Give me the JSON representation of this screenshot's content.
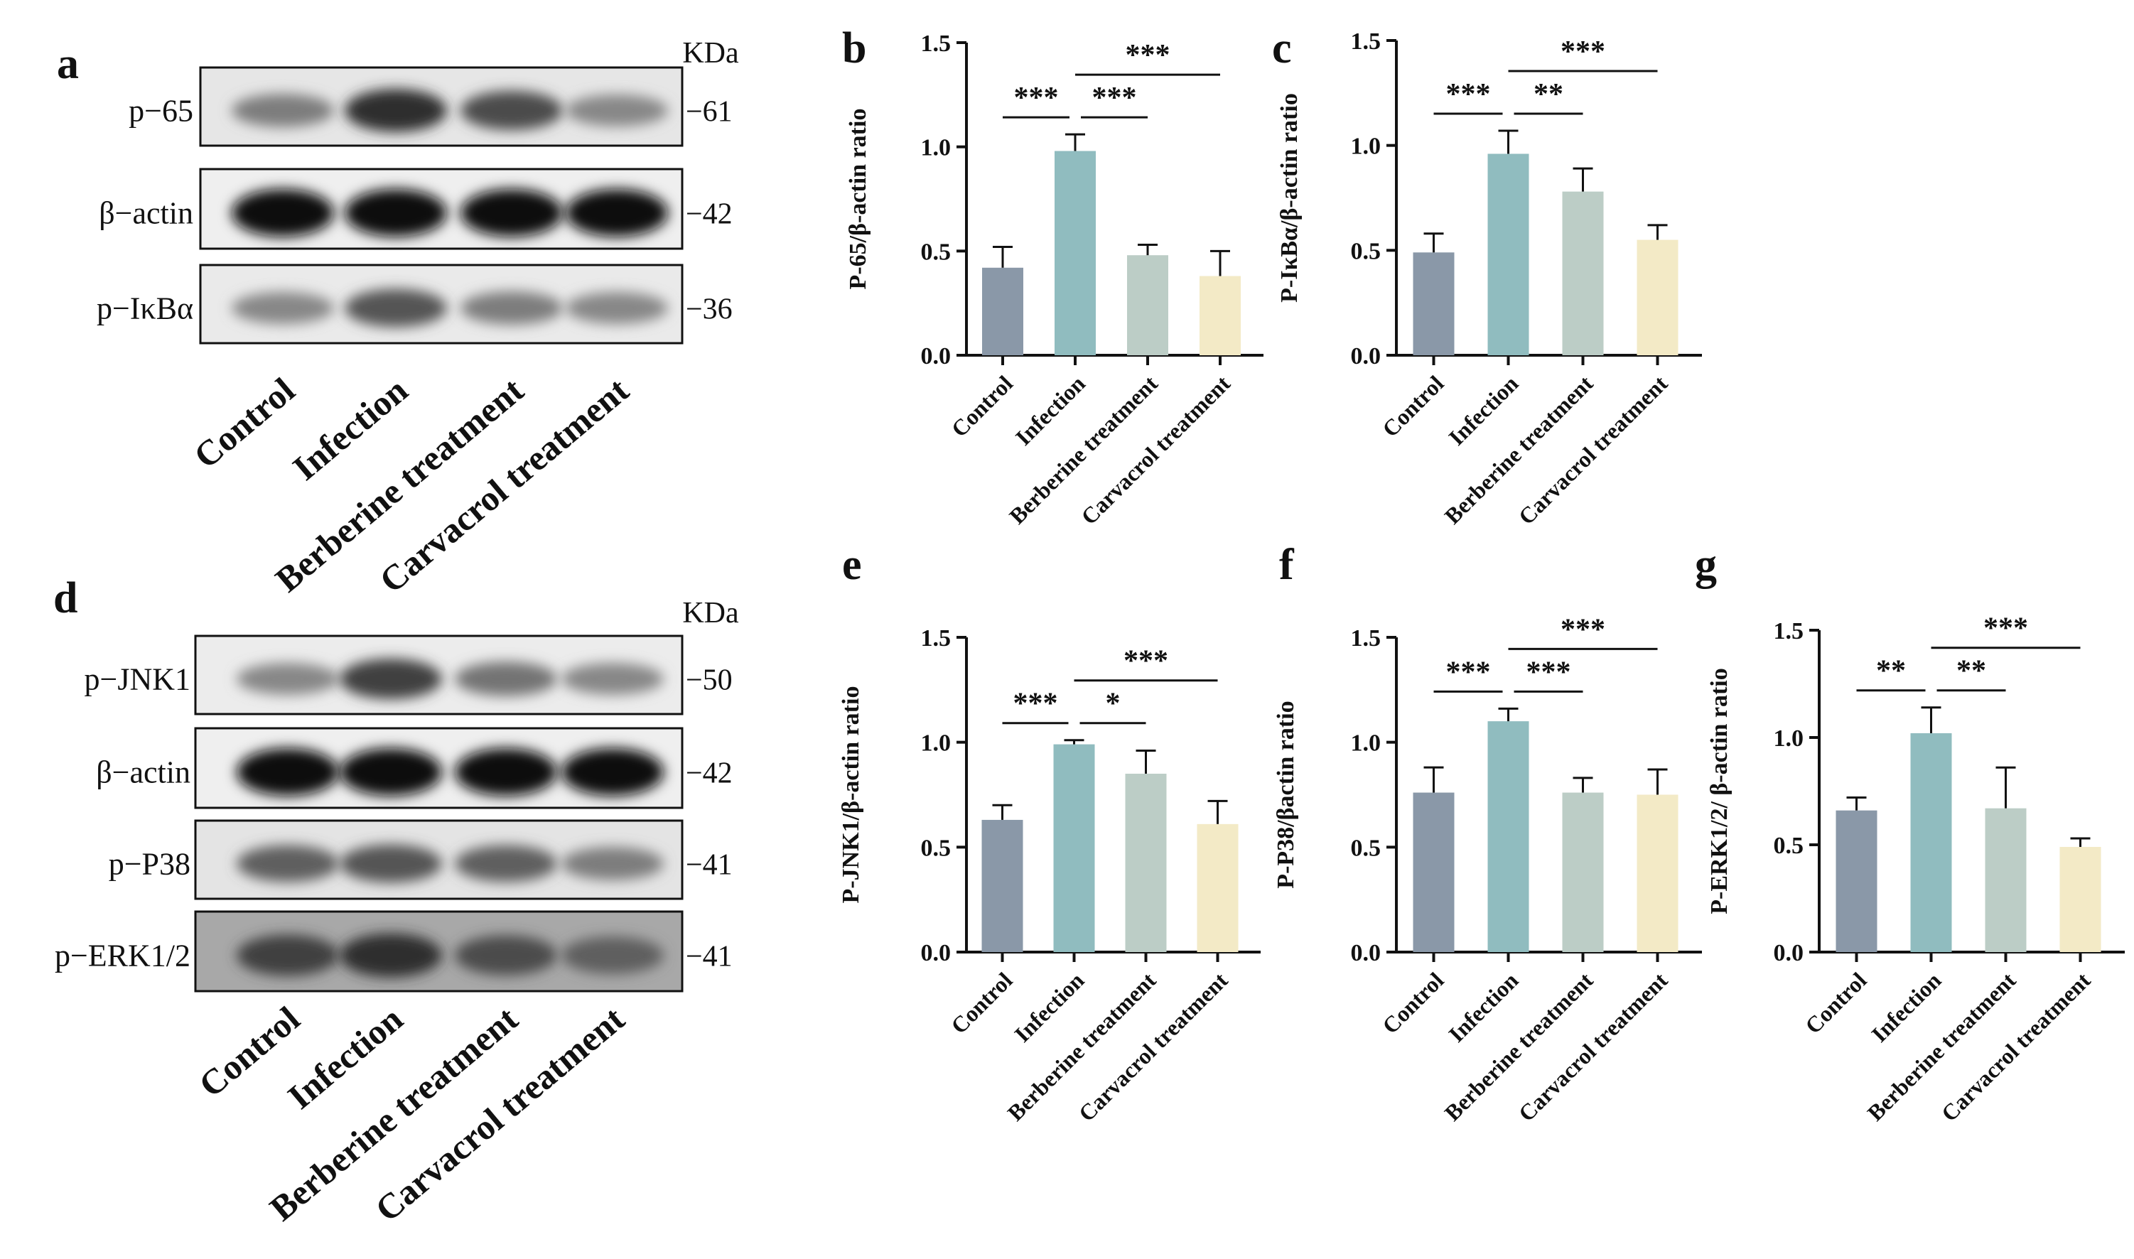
{
  "blot_figures": [
    {
      "letter": "a",
      "unit": "KDa",
      "lanes": [
        "Control",
        "Infection",
        "Berberine treatment",
        "Carvacrol treatment"
      ],
      "rows": [
        {
          "label": "p−65",
          "kda": "−61",
          "intensity": [
            0.45,
            0.85,
            0.7,
            0.4
          ],
          "background": "#e6e6e6"
        },
        {
          "label": "β−actin",
          "kda": "−42",
          "intensity": [
            1.0,
            1.0,
            1.0,
            1.0
          ],
          "background": "#efefef"
        },
        {
          "label": "p−IκBα",
          "kda": "−36",
          "intensity": [
            0.4,
            0.65,
            0.45,
            0.4
          ],
          "background": "#eaeaea"
        }
      ]
    },
    {
      "letter": "d",
      "unit": "KDa",
      "lanes": [
        "Control",
        "Infection",
        "Berberine treatment",
        "Carvacrol treatment"
      ],
      "rows": [
        {
          "label": "p−JNK1",
          "kda": "−50",
          "intensity": [
            0.4,
            0.75,
            0.5,
            0.4
          ],
          "background": "#ececec"
        },
        {
          "label": "β−actin",
          "kda": "−42",
          "intensity": [
            1.0,
            1.0,
            1.0,
            1.0
          ],
          "background": "#efefef"
        },
        {
          "label": "p−P38",
          "kda": "−41",
          "intensity": [
            0.6,
            0.65,
            0.6,
            0.45
          ],
          "background": "#e4e4e4"
        },
        {
          "label": "p−ERK1/2",
          "kda": "−41",
          "intensity": [
            0.75,
            0.85,
            0.7,
            0.6
          ],
          "background": "#a8a8a8"
        }
      ]
    }
  ],
  "colors": {
    "Control": "#8a98a8",
    "Infection": "#90bcbf",
    "Berberine treatment": "#bccdc6",
    "Carvacrol treatment": "#f3eac6"
  },
  "chart_data": [
    {
      "letter": "b",
      "type": "bar",
      "categories": [
        "Control",
        "Infection",
        "Berberine treatment",
        "Carvacrol treatment"
      ],
      "values": [
        0.42,
        0.98,
        0.48,
        0.38
      ],
      "errors": [
        0.1,
        0.08,
        0.05,
        0.12
      ],
      "ylabel": "P-65/β-actin ratio",
      "ylim": [
        0,
        1.5
      ],
      "yticks": [
        "0.0",
        "0.5",
        "1.0",
        "1.5"
      ],
      "significance": [
        {
          "from": 0,
          "to": 1,
          "label": "***"
        },
        {
          "from": 1,
          "to": 2,
          "label": "***"
        },
        {
          "from": 1,
          "to": 3,
          "label": "***"
        }
      ]
    },
    {
      "letter": "c",
      "type": "bar",
      "categories": [
        "Control",
        "Infection",
        "Berberine treatment",
        "Carvacrol treatment"
      ],
      "values": [
        0.49,
        0.96,
        0.78,
        0.55
      ],
      "errors": [
        0.09,
        0.11,
        0.11,
        0.07
      ],
      "ylabel": "P-IκBα/β-actin ratio",
      "ylim": [
        0,
        1.5
      ],
      "yticks": [
        "0.0",
        "0.5",
        "1.0",
        "1.5"
      ],
      "significance": [
        {
          "from": 0,
          "to": 1,
          "label": "***"
        },
        {
          "from": 1,
          "to": 2,
          "label": "**"
        },
        {
          "from": 1,
          "to": 3,
          "label": "***"
        }
      ]
    },
    {
      "letter": "e",
      "type": "bar",
      "categories": [
        "Control",
        "Infection",
        "Berberine treatment",
        "Carvacrol treatment"
      ],
      "values": [
        0.63,
        0.99,
        0.85,
        0.61
      ],
      "errors": [
        0.07,
        0.02,
        0.11,
        0.11
      ],
      "ylabel": "P-JNK1/β-actin ratio",
      "ylim": [
        0,
        1.5
      ],
      "yticks": [
        "0.0",
        "0.5",
        "1.0",
        "1.5"
      ],
      "significance": [
        {
          "from": 0,
          "to": 1,
          "label": "***"
        },
        {
          "from": 1,
          "to": 2,
          "label": "*"
        },
        {
          "from": 1,
          "to": 3,
          "label": "***"
        }
      ]
    },
    {
      "letter": "f",
      "type": "bar",
      "categories": [
        "Control",
        "Infection",
        "Berberine treatment",
        "Carvacrol treatment"
      ],
      "values": [
        0.76,
        1.1,
        0.76,
        0.75
      ],
      "errors": [
        0.12,
        0.06,
        0.07,
        0.12
      ],
      "ylabel": "P-P38/βactin ratio",
      "ylim": [
        0,
        1.5
      ],
      "yticks": [
        "0.0",
        "0.5",
        "1.0",
        "1.5"
      ],
      "significance": [
        {
          "from": 0,
          "to": 1,
          "label": "***"
        },
        {
          "from": 1,
          "to": 2,
          "label": "***"
        },
        {
          "from": 1,
          "to": 3,
          "label": "***"
        }
      ]
    },
    {
      "letter": "g",
      "type": "bar",
      "categories": [
        "Control",
        "Infection",
        "Berberine treatment",
        "Carvacrol treatment"
      ],
      "values": [
        0.66,
        1.02,
        0.67,
        0.49
      ],
      "errors": [
        0.06,
        0.12,
        0.19,
        0.04
      ],
      "ylabel": "P-ERK1/2/  β-actin ratio",
      "ylim": [
        0,
        1.5
      ],
      "yticks": [
        "0.0",
        "0.5",
        "1.0",
        "1.5"
      ],
      "significance": [
        {
          "from": 0,
          "to": 1,
          "label": "**"
        },
        {
          "from": 1,
          "to": 2,
          "label": "**"
        },
        {
          "from": 1,
          "to": 3,
          "label": "***"
        }
      ]
    }
  ]
}
